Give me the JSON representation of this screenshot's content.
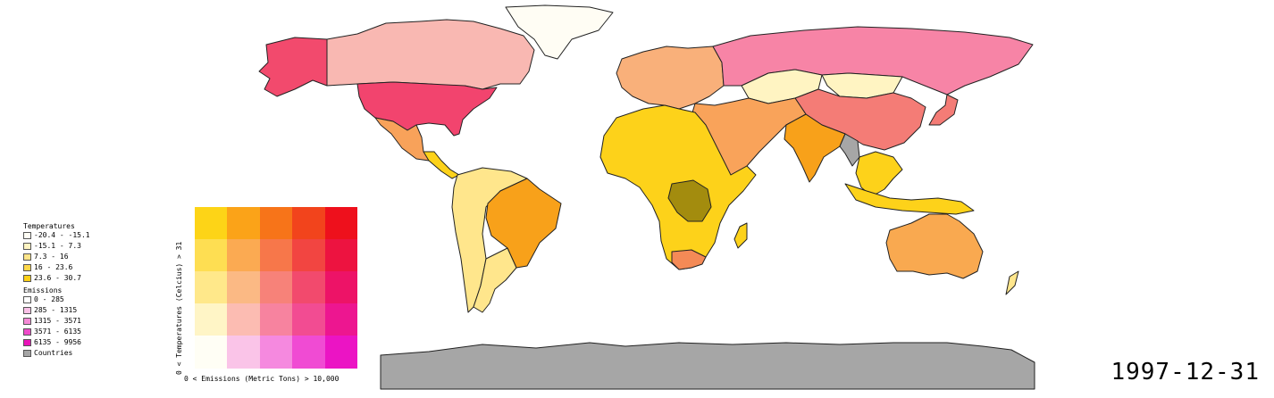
{
  "date": "1997-12-31",
  "legend": {
    "temperatures_title": "Temperatures",
    "temperatures": [
      {
        "label": "-20.4 - -15.1",
        "color": "#fffdf4"
      },
      {
        "label": "-15.1 - 7.3",
        "color": "#fff4c2"
      },
      {
        "label": "7.3 - 16",
        "color": "#ffe58a"
      },
      {
        "label": "16 - 23.6",
        "color": "#ffd84a"
      },
      {
        "label": "23.6 - 30.7",
        "color": "#fdd017"
      }
    ],
    "emissions_title": "Emissions",
    "emissions": [
      {
        "label": "0 - 285",
        "color": "#ffffff"
      },
      {
        "label": "285 - 1315",
        "color": "#f9c0e6"
      },
      {
        "label": "1315 - 3571",
        "color": "#f48ad6"
      },
      {
        "label": "3571 - 6135",
        "color": "#ee4ac9"
      },
      {
        "label": "6135 - 9956",
        "color": "#e814b8"
      }
    ],
    "countries_label": "Countries",
    "countries_color": "#a6a6a6"
  },
  "bivariate": {
    "y_label": "0 < Temperatures (Celcius) > 31",
    "x_label": "0 < Emissions (Metric Tons) > 10,000",
    "rows": [
      [
        "#fdd417",
        "#fba318",
        "#f77419",
        "#f2441c",
        "#ee101c"
      ],
      [
        "#fede52",
        "#fbaa52",
        "#f7774a",
        "#f24541",
        "#ed1340"
      ],
      [
        "#ffe88a",
        "#fbb984",
        "#f78279",
        "#f24a6d",
        "#ed1367"
      ],
      [
        "#fff5c6",
        "#fcbcb2",
        "#f7839f",
        "#f24c92",
        "#ed1690"
      ],
      [
        "#fffef5",
        "#fac4e8",
        "#f589df",
        "#f04bd3",
        "#eb14c4"
      ]
    ]
  },
  "map": {
    "ocean": "#ffffff",
    "border": "#222222",
    "countries": [
      {
        "name": "Greenland",
        "color": "#fffdf4"
      },
      {
        "name": "Canada",
        "color": "#f9b8b2"
      },
      {
        "name": "Alaska",
        "color": "#f24a6d"
      },
      {
        "name": "United States",
        "color": "#f2446e"
      },
      {
        "name": "Mexico",
        "color": "#f8a25a"
      },
      {
        "name": "Central America",
        "color": "#fdd21a"
      },
      {
        "name": "Brazil",
        "color": "#f8a11a"
      },
      {
        "name": "Andes",
        "color": "#ffe68c"
      },
      {
        "name": "Argentina",
        "color": "#ffe68c"
      },
      {
        "name": "Russia",
        "color": "#f784a6"
      },
      {
        "name": "China",
        "color": "#f47c76"
      },
      {
        "name": "Mongolia",
        "color": "#fff4c2"
      },
      {
        "name": "Kazakhstan",
        "color": "#fff4c2"
      },
      {
        "name": "Europe",
        "color": "#f9b07a"
      },
      {
        "name": "Middle East",
        "color": "#f9a35a"
      },
      {
        "name": "India",
        "color": "#f8a11a"
      },
      {
        "name": "Africa",
        "color": "#fdd21a"
      },
      {
        "name": "DR Congo",
        "color": "#a38c0e"
      },
      {
        "name": "South Africa",
        "color": "#f48a56"
      },
      {
        "name": "Southeast Asia",
        "color": "#fdd21a"
      },
      {
        "name": "Japan",
        "color": "#f47c76"
      },
      {
        "name": "Australia",
        "color": "#f9a950"
      },
      {
        "name": "Antarctica",
        "color": "#a6a6a6"
      },
      {
        "name": "Myanmar",
        "color": "#a6a6a6"
      }
    ]
  }
}
